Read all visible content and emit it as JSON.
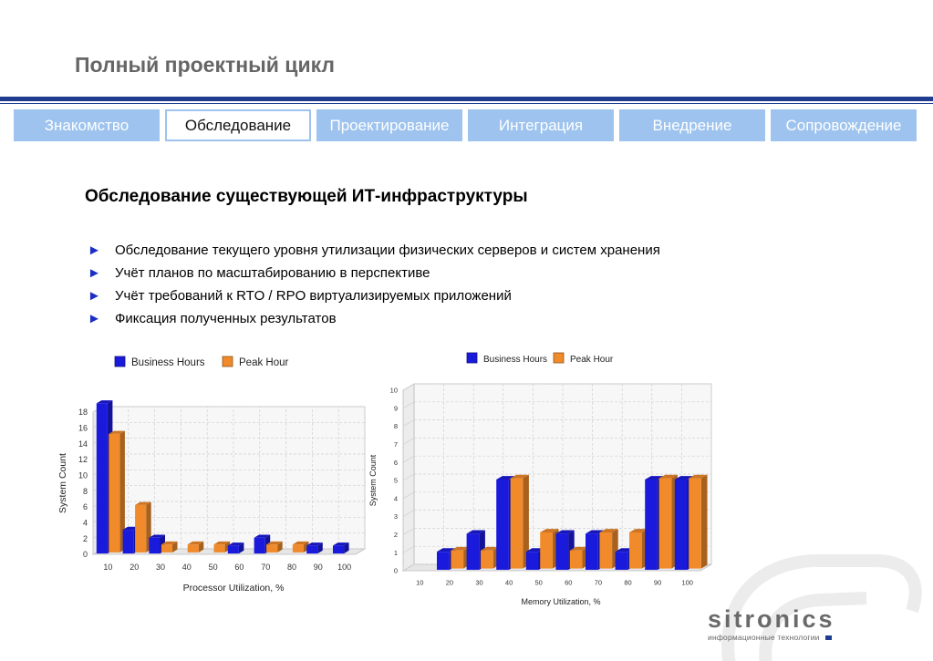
{
  "page_title": "Полный проектный цикл",
  "tabs": [
    {
      "label": "Знакомство",
      "active": false
    },
    {
      "label": "Обследование",
      "active": true
    },
    {
      "label": "Проектирование",
      "active": false
    },
    {
      "label": "Интеграция",
      "active": false
    },
    {
      "label": "Внедрение",
      "active": false
    },
    {
      "label": "Сопровождение",
      "active": false
    }
  ],
  "section_title": "Обследование существующей ИТ-инфраструктуры",
  "bullet_icon": "right-triangle-arrow",
  "bullets": [
    "Обследование текущего уровня утилизации физических серверов и систем хранения",
    "Учёт планов по масштабированию в перспективе",
    "Учёт требований к RTO / RPO виртуализируемых приложений",
    "Фиксация полученных результатов"
  ],
  "colors": {
    "accent": "#1f3c8f",
    "tab_bg": "#9dc3ee",
    "business": "#1a1adc",
    "peak": "#f08a2a"
  },
  "chart_data": [
    {
      "type": "bar",
      "categories": [
        "10",
        "20",
        "30",
        "40",
        "50",
        "60",
        "70",
        "80",
        "90",
        "100"
      ],
      "series": [
        {
          "name": "Business Hours",
          "values": [
            19,
            3,
            2,
            0,
            0,
            1,
            2,
            0,
            1,
            1
          ]
        },
        {
          "name": "Peak Hour",
          "values": [
            15,
            6,
            1,
            1,
            1,
            0,
            1,
            1,
            0,
            0
          ]
        }
      ],
      "xlabel": "Processor Utilization, %",
      "ylabel": "System Count",
      "ylim": [
        0,
        18
      ],
      "yticks": [
        "0",
        "2",
        "4",
        "6",
        "8",
        "10",
        "12",
        "14",
        "16",
        "18"
      ],
      "grid": true,
      "legend": "top-left"
    },
    {
      "type": "bar",
      "categories": [
        "10",
        "20",
        "30",
        "40",
        "50",
        "60",
        "70",
        "80",
        "90",
        "100"
      ],
      "series": [
        {
          "name": "Business Hours",
          "values": [
            0,
            1,
            2,
            5,
            1,
            2,
            2,
            1,
            5,
            5
          ]
        },
        {
          "name": "Peak Hour",
          "values": [
            0,
            1,
            1,
            5,
            2,
            1,
            2,
            2,
            5,
            5
          ]
        }
      ],
      "xlabel": "Memory Utilization, %",
      "ylabel": "System Count",
      "ylim": [
        0,
        10
      ],
      "yticks": [
        "0",
        "1",
        "2",
        "3",
        "4",
        "5",
        "6",
        "7",
        "8",
        "9",
        "10"
      ],
      "grid": true,
      "legend": "top-center"
    }
  ],
  "logo": {
    "word": "sitronics",
    "subtitle": "информационные технологии"
  }
}
